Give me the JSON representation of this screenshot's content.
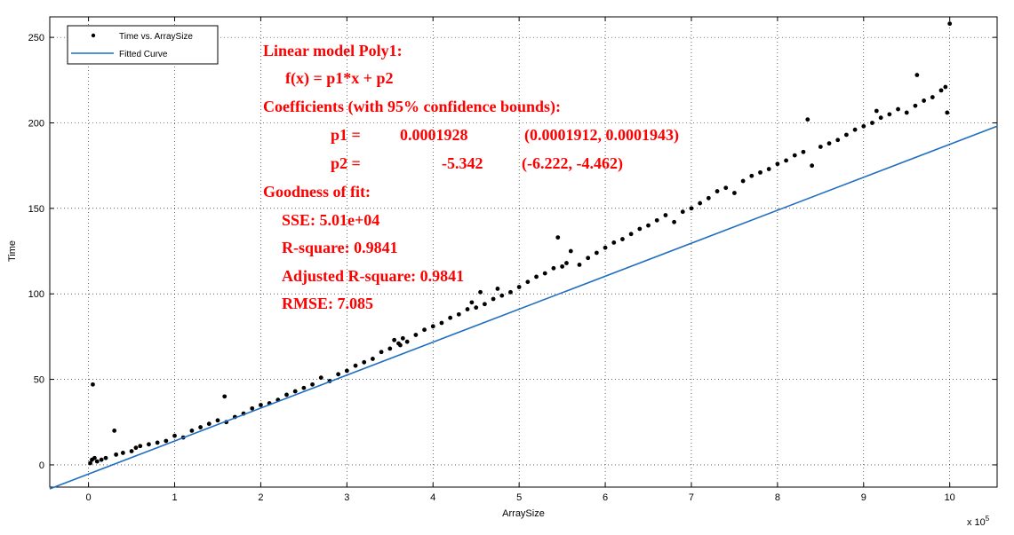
{
  "chart_data": {
    "type": "scatter",
    "xlabel": "ArraySize",
    "ylabel": "Time",
    "x_exponent_label": "x 10",
    "x_exponent_power": "5",
    "xlim": [
      -0.45,
      10.55
    ],
    "ylim": [
      -13,
      262
    ],
    "x_ticks": [
      0,
      1,
      2,
      3,
      4,
      5,
      6,
      7,
      8,
      9,
      10
    ],
    "y_ticks": [
      0,
      50,
      100,
      150,
      200,
      250
    ],
    "grid": true,
    "legend_position": "top-left",
    "series": [
      {
        "name": "Time vs. ArraySize",
        "type": "scatter",
        "color": "#000000",
        "x": [
          0.02,
          0.04,
          0.05,
          0.07,
          0.1,
          0.15,
          0.2,
          0.3,
          0.32,
          0.4,
          0.5,
          0.55,
          0.6,
          0.7,
          0.8,
          0.9,
          1.0,
          1.1,
          1.2,
          1.3,
          1.4,
          1.5,
          1.58,
          1.6,
          1.7,
          1.8,
          1.9,
          2.0,
          2.1,
          2.2,
          2.3,
          2.4,
          2.5,
          2.6,
          2.7,
          2.8,
          2.9,
          3.0,
          3.1,
          3.2,
          3.3,
          3.4,
          3.5,
          3.55,
          3.6,
          3.62,
          3.65,
          3.7,
          3.8,
          3.9,
          4.0,
          4.1,
          4.2,
          4.3,
          4.4,
          4.45,
          4.5,
          4.55,
          4.6,
          4.7,
          4.75,
          4.8,
          4.9,
          5.0,
          5.1,
          5.2,
          5.3,
          5.4,
          5.45,
          5.5,
          5.55,
          5.6,
          5.7,
          5.8,
          5.9,
          6.0,
          6.1,
          6.2,
          6.3,
          6.4,
          6.5,
          6.6,
          6.7,
          6.8,
          6.9,
          7.0,
          7.1,
          7.2,
          7.3,
          7.4,
          7.5,
          7.6,
          7.7,
          7.8,
          7.9,
          8.0,
          8.1,
          8.2,
          8.3,
          8.35,
          8.4,
          8.5,
          8.6,
          8.7,
          8.8,
          8.9,
          9.0,
          9.1,
          9.15,
          9.2,
          9.3,
          9.4,
          9.5,
          9.6,
          9.62,
          9.7,
          9.8,
          9.9,
          9.95,
          9.97,
          10.0
        ],
        "y": [
          1,
          3,
          47,
          4,
          2,
          3,
          4,
          20,
          6,
          7,
          8,
          10,
          11,
          12,
          13,
          14,
          17,
          16,
          20,
          22,
          24,
          26,
          40,
          25,
          28,
          30,
          33,
          35,
          36,
          38,
          41,
          43,
          45,
          47,
          51,
          49,
          53,
          55,
          58,
          60,
          62,
          66,
          68,
          73,
          71,
          70,
          74,
          72,
          76,
          79,
          81,
          83,
          86,
          88,
          91,
          95,
          92,
          101,
          94,
          97,
          103,
          99,
          101,
          104,
          107,
          110,
          112,
          115,
          133,
          116,
          118,
          125,
          117,
          121,
          124,
          127,
          130,
          132,
          135,
          138,
          140,
          143,
          146,
          142,
          148,
          150,
          153,
          156,
          160,
          162,
          159,
          166,
          169,
          171,
          173,
          176,
          178,
          181,
          183,
          202,
          175,
          186,
          188,
          190,
          193,
          196,
          198,
          200,
          207,
          203,
          205,
          208,
          206,
          210,
          228,
          213,
          215,
          219,
          221,
          206,
          258
        ]
      },
      {
        "name": "Fitted Curve",
        "type": "line",
        "color": "#1f6fbf",
        "x": [
          -0.45,
          10.55
        ],
        "y": [
          -14.02,
          198.06
        ]
      }
    ],
    "annotation_lines": [
      "Linear model Poly1:",
      "f(x) = p1*x + p2",
      "Coefficients (with 95% confidence bounds):",
      "p1 =",
      "0.0001928",
      "(0.0001912, 0.0001943)",
      "p2 =",
      "-5.342",
      "(-6.222, -4.462)",
      "Goodness of fit:",
      "SSE: 5.01e+04",
      "R-square: 0.9841",
      "Adjusted R-square: 0.9841",
      "RMSE: 7.085"
    ]
  }
}
